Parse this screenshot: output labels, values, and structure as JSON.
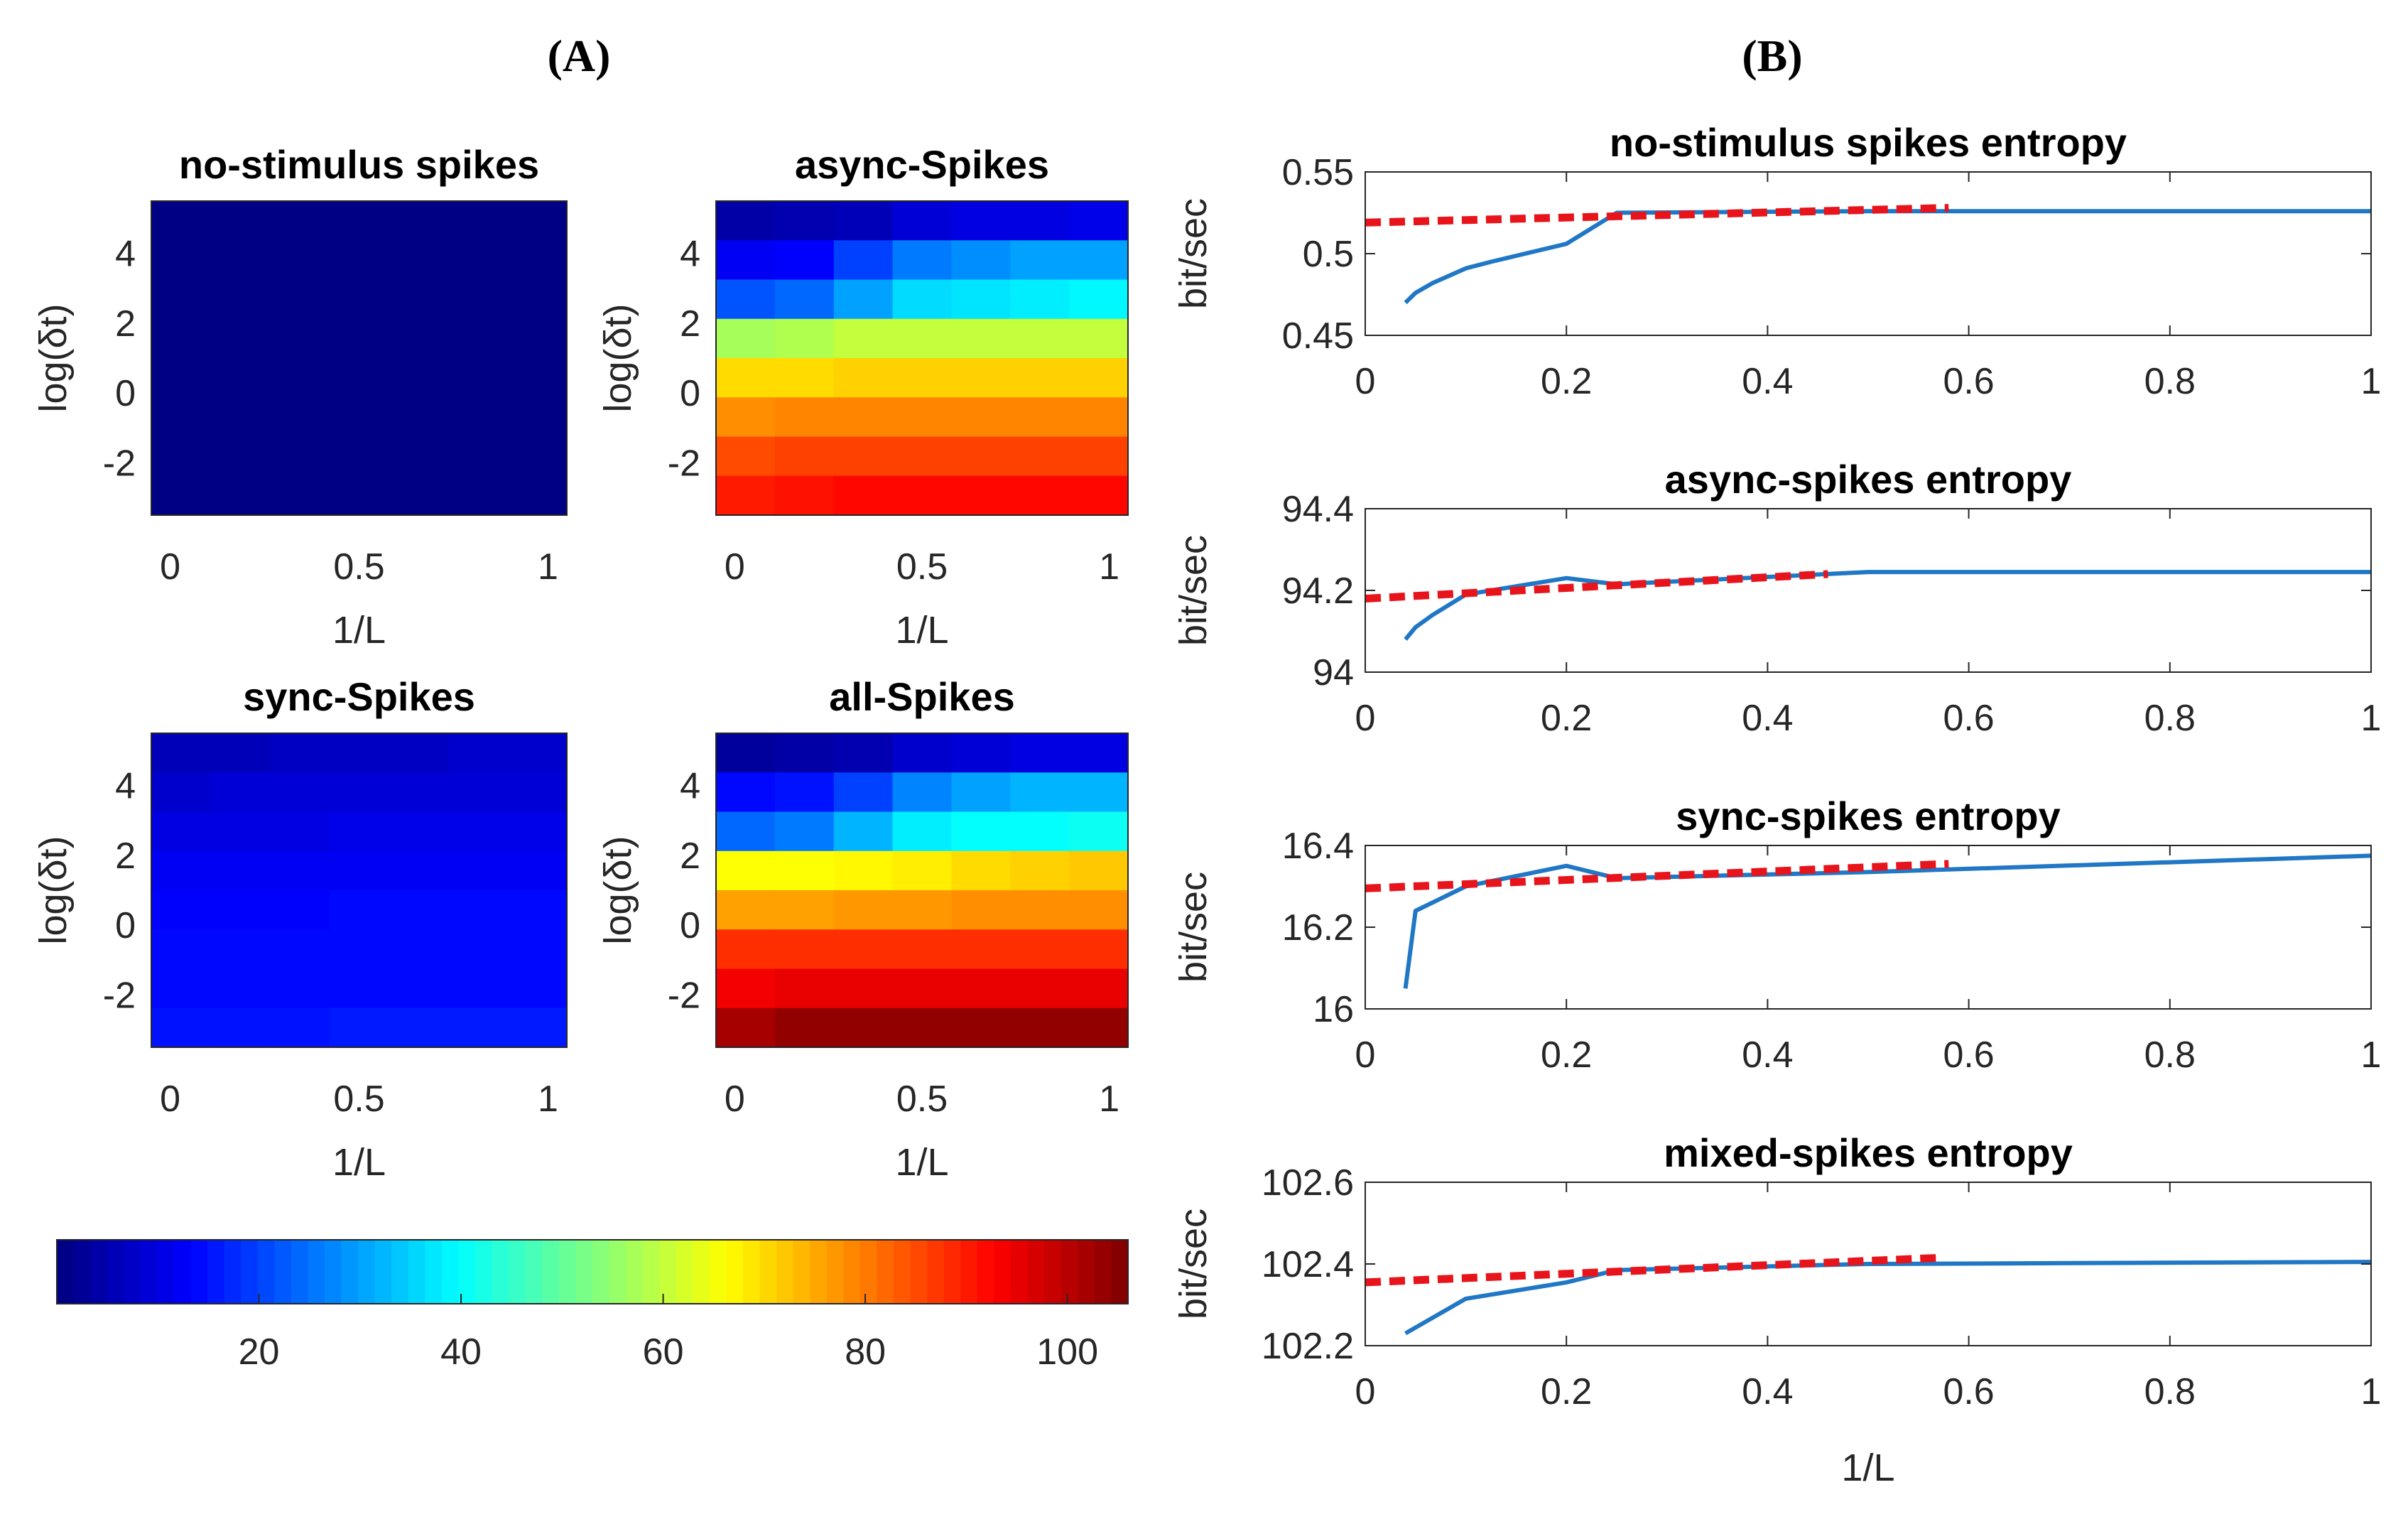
{
  "figure": {
    "panel_a_label": "(A)",
    "panel_b_label": "(B)"
  },
  "chart_data": [
    {
      "id": "heat-no-stimulus",
      "type": "heatmap",
      "title": "no-stimulus spikes",
      "xlabel": "1/L",
      "ylabel": "log(δt)",
      "xticks": [
        "0",
        "0.5",
        "1"
      ],
      "yticks": [
        "4",
        "2",
        "0",
        "-2"
      ],
      "xlim": [
        -0.05,
        1.05
      ],
      "ylim": [
        -3.5,
        5.5
      ],
      "values": [
        [
          0.5,
          0.5,
          0.5,
          0.5,
          0.5,
          0.5,
          0.5
        ],
        [
          0.5,
          0.5,
          0.5,
          0.5,
          0.5,
          0.5,
          0.5
        ],
        [
          0.5,
          0.5,
          0.5,
          0.5,
          0.5,
          0.5,
          0.5
        ],
        [
          0.5,
          0.5,
          0.5,
          0.5,
          0.5,
          0.5,
          0.5
        ],
        [
          0.5,
          0.5,
          0.5,
          0.5,
          0.5,
          0.5,
          0.5
        ],
        [
          0.5,
          0.5,
          0.5,
          0.5,
          0.5,
          0.5,
          0.5
        ],
        [
          0.5,
          0.5,
          0.5,
          0.5,
          0.5,
          0.5,
          0.5
        ],
        [
          0.5,
          0.5,
          0.5,
          0.5,
          0.5,
          0.5,
          0.5
        ]
      ]
    },
    {
      "id": "heat-async",
      "type": "heatmap",
      "title": "async-Spikes",
      "xlabel": "1/L",
      "ylabel": "log(δt)",
      "xticks": [
        "0",
        "0.5",
        "1"
      ],
      "yticks": [
        "4",
        "2",
        "0",
        "-2"
      ],
      "xlim": [
        -0.05,
        1.05
      ],
      "ylim": [
        -3.5,
        5.5
      ],
      "values": [
        [
          4,
          5,
          6,
          9,
          10,
          10,
          11
        ],
        [
          12,
          13,
          20,
          26,
          28,
          30,
          30
        ],
        [
          22,
          24,
          30,
          36,
          37,
          38,
          39
        ],
        [
          57,
          58,
          60,
          60,
          60,
          60,
          60
        ],
        [
          70,
          70,
          71,
          71,
          71,
          71,
          71
        ],
        [
          78,
          79,
          79,
          79,
          79,
          79,
          79
        ],
        [
          85,
          86,
          86,
          86,
          86,
          86,
          86
        ],
        [
          90,
          91,
          92,
          92,
          92,
          92,
          92
        ]
      ]
    },
    {
      "id": "heat-sync",
      "type": "heatmap",
      "title": "sync-Spikes",
      "xlabel": "1/L",
      "ylabel": "log(δt)",
      "xticks": [
        "0",
        "0.5",
        "1"
      ],
      "yticks": [
        "4",
        "2",
        "0",
        "-2"
      ],
      "xlim": [
        -0.05,
        1.05
      ],
      "ylim": [
        -3.5,
        5.5
      ],
      "values": [
        [
          6,
          6,
          7,
          7,
          7,
          8,
          8
        ],
        [
          8,
          9,
          9,
          9,
          9,
          9,
          9
        ],
        [
          10,
          10,
          10,
          11,
          11,
          11,
          11
        ],
        [
          12,
          12,
          12,
          12,
          12,
          12,
          12
        ],
        [
          13,
          13,
          13,
          14,
          14,
          14,
          14
        ],
        [
          14,
          14,
          14,
          14,
          14,
          14,
          14
        ],
        [
          14,
          14,
          14,
          14,
          14,
          14,
          14
        ],
        [
          15,
          15,
          15,
          16,
          16,
          16,
          16
        ]
      ]
    },
    {
      "id": "heat-all",
      "type": "heatmap",
      "title": "all-Spikes",
      "xlabel": "1/L",
      "ylabel": "log(δt)",
      "xticks": [
        "0",
        "0.5",
        "1"
      ],
      "yticks": [
        "4",
        "2",
        "0",
        "-2"
      ],
      "xlim": [
        -0.05,
        1.05
      ],
      "ylim": [
        -3.5,
        5.5
      ],
      "values": [
        [
          3,
          4,
          5,
          8,
          9,
          10,
          10
        ],
        [
          14,
          15,
          20,
          27,
          30,
          32,
          32
        ],
        [
          24,
          26,
          32,
          38,
          40,
          40,
          41
        ],
        [
          66,
          66,
          67,
          68,
          70,
          71,
          72
        ],
        [
          76,
          76,
          77,
          77,
          78,
          78,
          78
        ],
        [
          88,
          88,
          88,
          88,
          88,
          88,
          88
        ],
        [
          94,
          95,
          95,
          95,
          95,
          95,
          95
        ],
        [
          102,
          104,
          104,
          104,
          104,
          104,
          104
        ]
      ]
    },
    {
      "id": "colorbar",
      "type": "colorbar",
      "colormap": "jet",
      "range": [
        0,
        106
      ],
      "ticks": [
        20,
        40,
        60,
        80,
        100
      ]
    },
    {
      "id": "line-no-stimulus",
      "type": "line",
      "title": "no-stimulus spikes entropy",
      "xlabel": "",
      "ylabel": "bit/sec",
      "xlim": [
        0,
        1
      ],
      "ylim": [
        0.45,
        0.55
      ],
      "xticks": [
        0,
        0.2,
        0.4,
        0.6,
        0.8,
        1
      ],
      "xtick_labels": [
        "0",
        "0.2",
        "0.4",
        "0.6",
        "0.8",
        "1"
      ],
      "yticks": [
        0.45,
        0.5,
        0.55
      ],
      "ytick_labels": [
        "0.45",
        "0.5",
        "0.55"
      ],
      "series": [
        {
          "name": "entropy",
          "color": "#1f77c6",
          "x": [
            0.04,
            0.05,
            0.067,
            0.1,
            0.125,
            0.2,
            0.25,
            0.5,
            1
          ],
          "y": [
            0.47,
            0.476,
            0.482,
            0.491,
            0.495,
            0.506,
            0.525,
            0.526,
            0.526
          ]
        },
        {
          "name": "extrapolation",
          "color": "#e8141b",
          "dashed": true,
          "x": [
            0,
            0.58
          ],
          "y": [
            0.519,
            0.528
          ]
        }
      ]
    },
    {
      "id": "line-async",
      "type": "line",
      "title": "async-spikes entropy",
      "xlabel": "",
      "ylabel": "bit/sec",
      "xlim": [
        0,
        1
      ],
      "ylim": [
        94,
        94.4
      ],
      "xticks": [
        0,
        0.2,
        0.4,
        0.6,
        0.8,
        1
      ],
      "xtick_labels": [
        "0",
        "0.2",
        "0.4",
        "0.6",
        "0.8",
        "1"
      ],
      "yticks": [
        94,
        94.2,
        94.4
      ],
      "ytick_labels": [
        "94",
        "94.2",
        "94.4"
      ],
      "series": [
        {
          "name": "entropy",
          "color": "#1f77c6",
          "x": [
            0.04,
            0.05,
            0.067,
            0.1,
            0.2,
            0.25,
            0.5,
            1
          ],
          "y": [
            94.08,
            94.11,
            94.14,
            94.19,
            94.23,
            94.215,
            94.245,
            94.245
          ]
        },
        {
          "name": "extrapolation",
          "color": "#e8141b",
          "dashed": true,
          "x": [
            0,
            0.46
          ],
          "y": [
            94.18,
            94.24
          ]
        }
      ]
    },
    {
      "id": "line-sync",
      "type": "line",
      "title": "sync-spikes entropy",
      "xlabel": "",
      "ylabel": "bit/sec",
      "xlim": [
        0,
        1
      ],
      "ylim": [
        16,
        16.4
      ],
      "xticks": [
        0,
        0.2,
        0.4,
        0.6,
        0.8,
        1
      ],
      "xtick_labels": [
        "0",
        "0.2",
        "0.4",
        "0.6",
        "0.8",
        "1"
      ],
      "yticks": [
        16,
        16.2,
        16.4
      ],
      "ytick_labels": [
        "16",
        "16.2",
        "16.4"
      ],
      "series": [
        {
          "name": "entropy",
          "color": "#1f77c6",
          "x": [
            0.04,
            0.05,
            0.1,
            0.2,
            0.25,
            0.5,
            1
          ],
          "y": [
            16.05,
            16.24,
            16.3,
            16.35,
            16.32,
            16.335,
            16.375
          ]
        },
        {
          "name": "extrapolation",
          "color": "#e8141b",
          "dashed": true,
          "x": [
            0,
            0.58
          ],
          "y": [
            16.295,
            16.355
          ]
        }
      ]
    },
    {
      "id": "line-mixed",
      "type": "line",
      "title": "mixed-spikes entropy",
      "xlabel": "1/L",
      "ylabel": "bit/sec",
      "xlim": [
        0,
        1
      ],
      "ylim": [
        102.2,
        102.6
      ],
      "xticks": [
        0,
        0.2,
        0.4,
        0.6,
        0.8,
        1
      ],
      "xtick_labels": [
        "0",
        "0.2",
        "0.4",
        "0.6",
        "0.8",
        "1"
      ],
      "yticks": [
        102.2,
        102.4,
        102.6
      ],
      "ytick_labels": [
        "102.2",
        "102.4",
        "102.6"
      ],
      "series": [
        {
          "name": "entropy",
          "color": "#1f77c6",
          "x": [
            0.04,
            0.1,
            0.2,
            0.25,
            0.5,
            1
          ],
          "y": [
            102.23,
            102.315,
            102.355,
            102.385,
            102.4,
            102.405
          ]
        },
        {
          "name": "extrapolation",
          "color": "#e8141b",
          "dashed": true,
          "x": [
            0,
            0.57
          ],
          "y": [
            102.355,
            102.415
          ]
        }
      ]
    }
  ]
}
